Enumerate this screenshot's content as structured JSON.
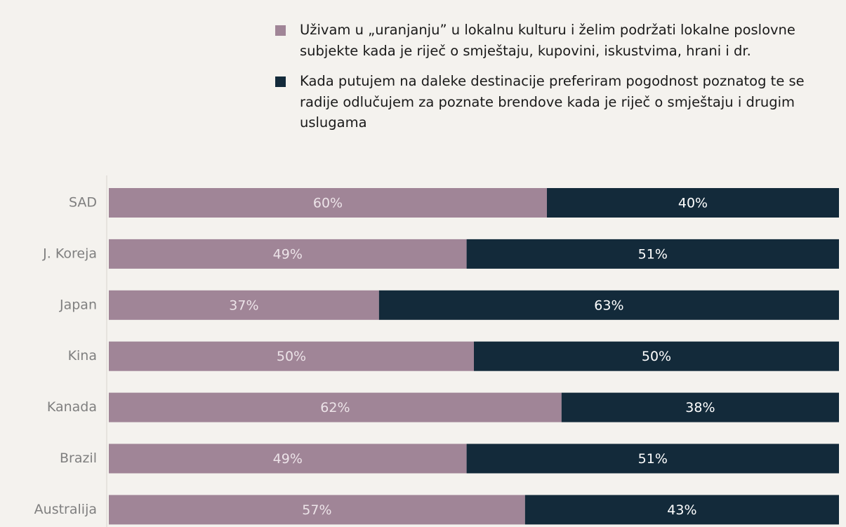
{
  "chart_data": {
    "type": "stacked-bar-horizontal",
    "categories": [
      "SAD",
      "J. Koreja",
      "Japan",
      "Kina",
      "Kanada",
      "Brazil",
      "Australija"
    ],
    "series": [
      {
        "name": "Uživam u „uranjanju” u lokalnu kulturu i želim podržati lokalne poslovne subjekte kada je riječ o smještaju, kupovini, iskustvima, hrani i dr.",
        "color": "#a08597",
        "values": [
          60,
          49,
          37,
          50,
          62,
          49,
          57
        ],
        "value_labels": [
          "60%",
          "49%",
          "37%",
          "50%",
          "62%",
          "49%",
          "57%"
        ]
      },
      {
        "name": "Kada putujem na daleke destinacije preferiram pogodnost poznatog te se radije odlučujem za poznate brendove kada je riječ o smještaju i drugim uslugama",
        "color": "#132a3a",
        "values": [
          40,
          51,
          63,
          50,
          38,
          51,
          43
        ],
        "value_labels": [
          "40%",
          "51%",
          "63%",
          "50%",
          "38%",
          "51%",
          "43%"
        ]
      }
    ],
    "xlim": [
      0,
      100
    ]
  }
}
